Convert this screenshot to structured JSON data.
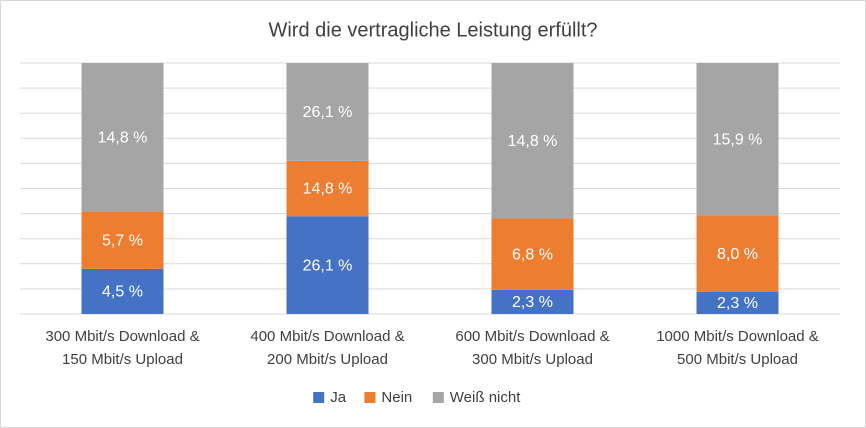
{
  "chart_data": {
    "type": "bar",
    "stacking": "percent",
    "title": "Wird die vertragliche Leistung erfüllt?",
    "categories": [
      [
        "300 Mbit/s Download &",
        "150 Mbit/s Upload"
      ],
      [
        "400 Mbit/s Download &",
        "200 Mbit/s Upload"
      ],
      [
        "600 Mbit/s Download &",
        "300 Mbit/s Upload"
      ],
      [
        "1000 Mbit/s Download &",
        "500 Mbit/s Upload"
      ]
    ],
    "series": [
      {
        "name": "Ja",
        "color": "#4472c4",
        "values": [
          4.5,
          26.1,
          2.3,
          2.3
        ],
        "value_labels": [
          "4,5 %",
          "26,1 %",
          "2,3 %",
          "2,3 %"
        ]
      },
      {
        "name": "Nein",
        "color": "#ed7d31",
        "values": [
          5.7,
          14.8,
          6.8,
          8.0
        ],
        "value_labels": [
          "5,7 %",
          "14,8 %",
          "6,8 %",
          "8,0 %"
        ]
      },
      {
        "name": "Weiß nicht",
        "color": "#a5a5a5",
        "values": [
          14.8,
          26.1,
          14.8,
          15.9
        ],
        "value_labels": [
          "14,8 %",
          "26,1 %",
          "14,8 %",
          "15,9 %"
        ]
      }
    ],
    "grid": true,
    "legend": "bottom"
  }
}
